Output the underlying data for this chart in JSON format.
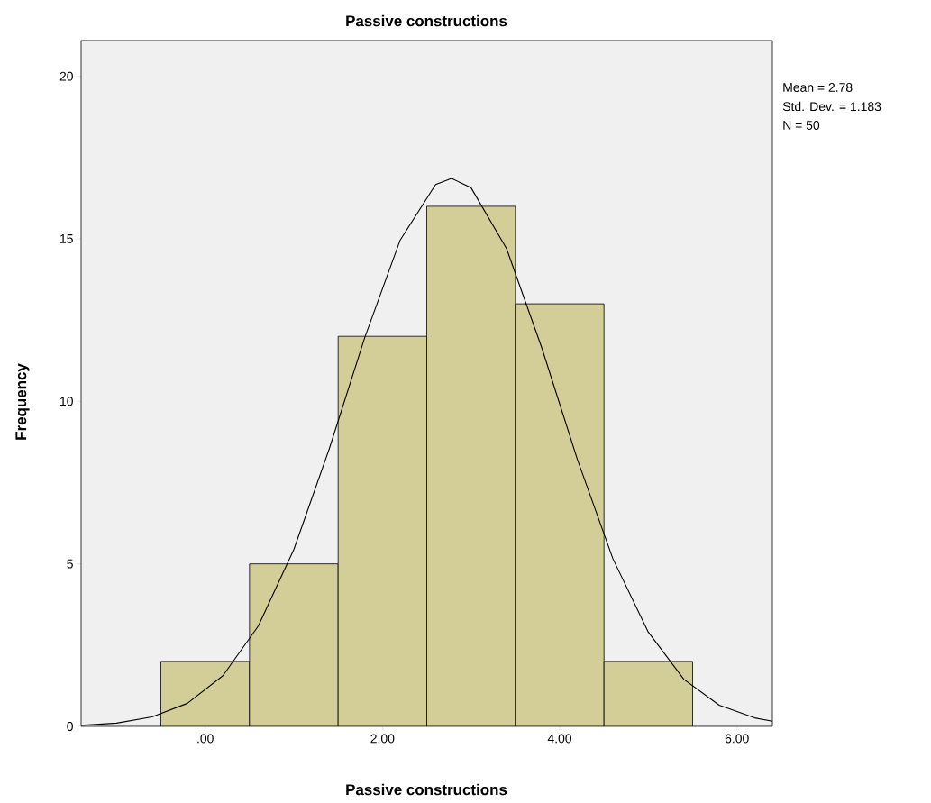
{
  "chart_data": {
    "type": "histogram",
    "title": "Passive constructions",
    "xlabel": "Passive constructions",
    "ylabel": "Frequency",
    "annotations": [
      "Mean = 2.78",
      "Std. Dev. = 1.183",
      "N = 50"
    ],
    "xlim": [
      -1.4,
      6.4
    ],
    "ylim": [
      0,
      21.1
    ],
    "xticks": [
      {
        "value": 0,
        "label": ".00"
      },
      {
        "value": 2,
        "label": "2.00"
      },
      {
        "value": 4,
        "label": "4.00"
      },
      {
        "value": 6,
        "label": "6.00"
      }
    ],
    "yticks": [
      0,
      5,
      10,
      15,
      20
    ],
    "grid": false,
    "series": [
      {
        "color": "#d3ce97",
        "bins": [
          -0.5,
          0.5,
          1.5,
          2.5,
          3.5,
          4.5,
          5.5
        ],
        "values": [
          2,
          5,
          12,
          16,
          13,
          2
        ]
      },
      {
        "type": "line",
        "color": "#000000",
        "x": [
          -1.4,
          -1.0,
          -0.6,
          -0.2,
          0.2,
          0.6,
          1.0,
          1.4,
          1.8,
          2.2,
          2.6,
          2.78,
          3.0,
          3.4,
          3.8,
          4.2,
          4.6,
          5.0,
          5.4,
          5.8,
          6.2,
          6.4
        ],
        "values": [
          0.03,
          0.1,
          0.29,
          0.71,
          1.56,
          3.09,
          5.44,
          8.54,
          11.96,
          14.96,
          16.67,
          16.86,
          16.57,
          14.7,
          11.63,
          8.21,
          5.16,
          2.9,
          1.45,
          0.65,
          0.26,
          0.16
        ]
      }
    ]
  }
}
